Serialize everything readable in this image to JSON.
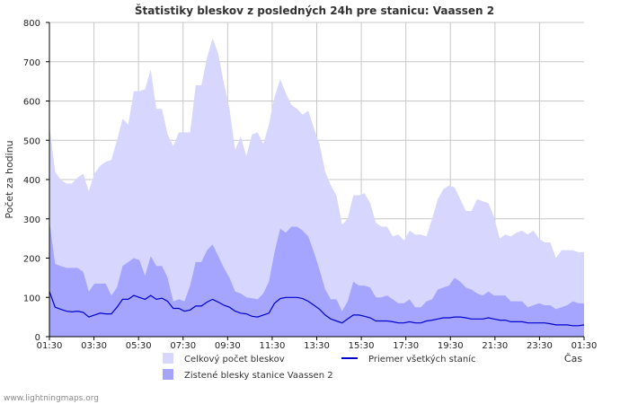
{
  "chart_data": {
    "type": "area",
    "title": "Štatistiky bleskov z posledných 24h pre stanicu: Vaassen 2",
    "ylabel": "Počet za hodinu",
    "xlabel": "Čas",
    "ylim": [
      0,
      800
    ],
    "yticks": [
      "0",
      "100",
      "200",
      "300",
      "400",
      "500",
      "600",
      "700",
      "800"
    ],
    "xlim_hours": [
      0,
      24
    ],
    "xticks": [
      "01:30",
      "03:30",
      "05:30",
      "07:30",
      "09:30",
      "11:30",
      "13:30",
      "15:30",
      "17:30",
      "19:30",
      "21:30",
      "23:30",
      "01:30"
    ],
    "grid": true,
    "series": [
      {
        "name": "Celkový počet bleskov",
        "style": "area",
        "color": "#d6d6ff",
        "values": [
          535,
          420,
          400,
          390,
          390,
          405,
          415,
          370,
          415,
          435,
          445,
          450,
          500,
          555,
          540,
          625,
          625,
          630,
          680,
          580,
          580,
          515,
          485,
          520,
          520,
          520,
          640,
          640,
          710,
          760,
          720,
          645,
          580,
          475,
          510,
          460,
          515,
          520,
          490,
          540,
          610,
          655,
          620,
          590,
          580,
          565,
          575,
          530,
          490,
          420,
          385,
          360,
          285,
          300,
          360,
          360,
          365,
          340,
          290,
          280,
          280,
          255,
          260,
          245,
          270,
          260,
          260,
          255,
          300,
          350,
          375,
          385,
          380,
          350,
          320,
          320,
          350,
          345,
          340,
          305,
          250,
          260,
          255,
          265,
          270,
          260,
          270,
          250,
          240,
          240,
          200,
          220,
          220,
          220,
          215,
          215
        ]
      },
      {
        "name": "Zistené blesky stanice Vaassen 2",
        "style": "area",
        "color": "#a5a5ff",
        "values": [
          295,
          185,
          180,
          175,
          175,
          175,
          165,
          115,
          135,
          135,
          135,
          105,
          125,
          180,
          190,
          200,
          195,
          155,
          205,
          180,
          180,
          150,
          90,
          95,
          90,
          130,
          190,
          190,
          220,
          235,
          205,
          175,
          150,
          115,
          110,
          100,
          98,
          95,
          110,
          140,
          215,
          275,
          265,
          280,
          280,
          270,
          255,
          215,
          170,
          120,
          95,
          95,
          65,
          90,
          140,
          130,
          130,
          125,
          100,
          100,
          105,
          95,
          85,
          85,
          95,
          75,
          75,
          90,
          95,
          120,
          125,
          130,
          150,
          140,
          125,
          120,
          110,
          105,
          115,
          105,
          105,
          105,
          90,
          90,
          90,
          75,
          80,
          85,
          80,
          80,
          70,
          75,
          80,
          90,
          85,
          85
        ]
      },
      {
        "name": "Priemer všetkých staníc",
        "style": "line",
        "color": "#0000cc",
        "values": [
          115,
          75,
          70,
          65,
          63,
          65,
          62,
          50,
          55,
          60,
          58,
          58,
          75,
          95,
          95,
          105,
          100,
          95,
          105,
          95,
          98,
          90,
          72,
          72,
          65,
          68,
          78,
          78,
          88,
          95,
          88,
          80,
          75,
          65,
          60,
          58,
          52,
          50,
          55,
          60,
          85,
          97,
          100,
          100,
          100,
          97,
          90,
          80,
          70,
          55,
          45,
          40,
          35,
          45,
          55,
          55,
          52,
          48,
          40,
          40,
          40,
          38,
          35,
          35,
          38,
          35,
          35,
          40,
          42,
          45,
          48,
          48,
          50,
          50,
          48,
          45,
          45,
          45,
          48,
          45,
          42,
          42,
          38,
          38,
          38,
          35,
          35,
          35,
          35,
          33,
          30,
          30,
          30,
          28,
          28,
          30
        ]
      }
    ]
  },
  "legend": {
    "total": "Celkový počet bleskov",
    "station": "Zistené blesky stanice Vaassen 2",
    "average": "Priemer všetkých staníc"
  },
  "footer": "www.lightningmaps.org",
  "colors": {
    "total": "#d6d6ff",
    "station": "#a5a5ff",
    "average": "#0000cc",
    "grid": "#c8c8c8"
  }
}
